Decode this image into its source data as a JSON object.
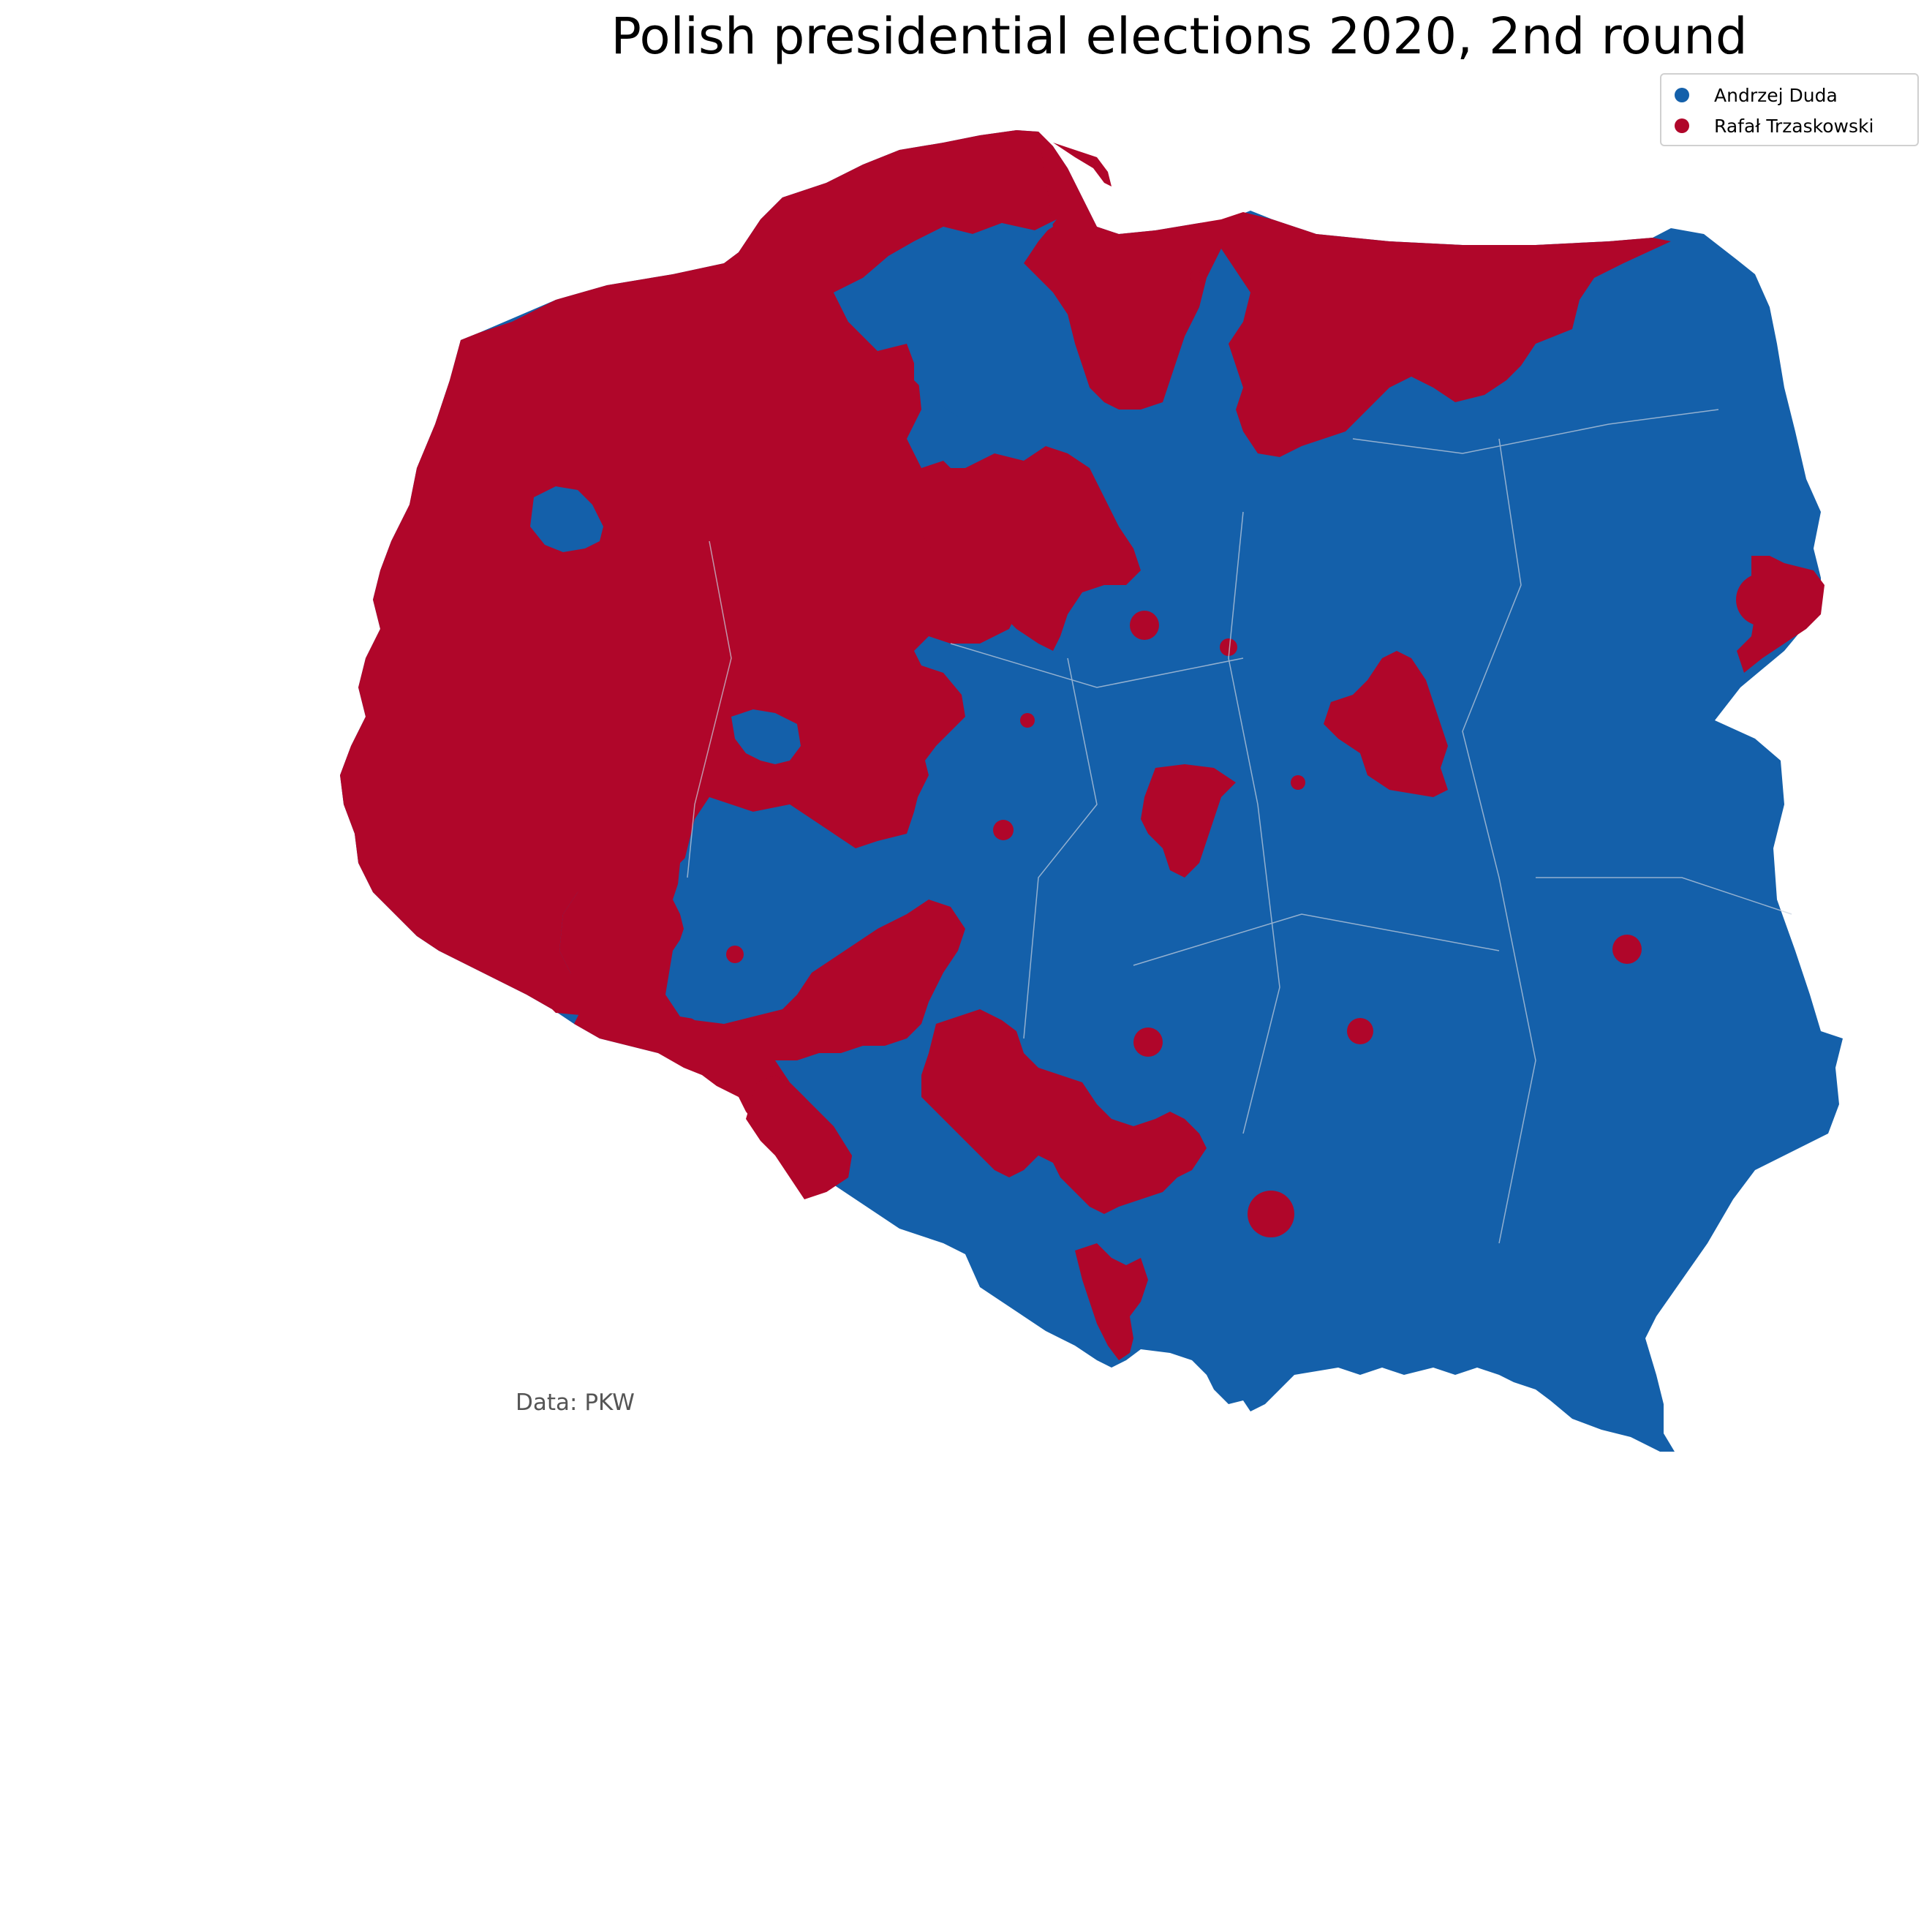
{
  "title": "Polish presidential elections 2020, 2nd round",
  "legend": [
    {
      "label": "Andrzej Duda",
      "color": "#1460aa"
    },
    {
      "label": "Rafał Trzaskowski",
      "color": "#b0062a"
    }
  ],
  "source": "Data: PKW",
  "colors": {
    "duda": "#1460aa",
    "trzaskowski": "#b0062a",
    "border": "#c9d3e0"
  }
}
